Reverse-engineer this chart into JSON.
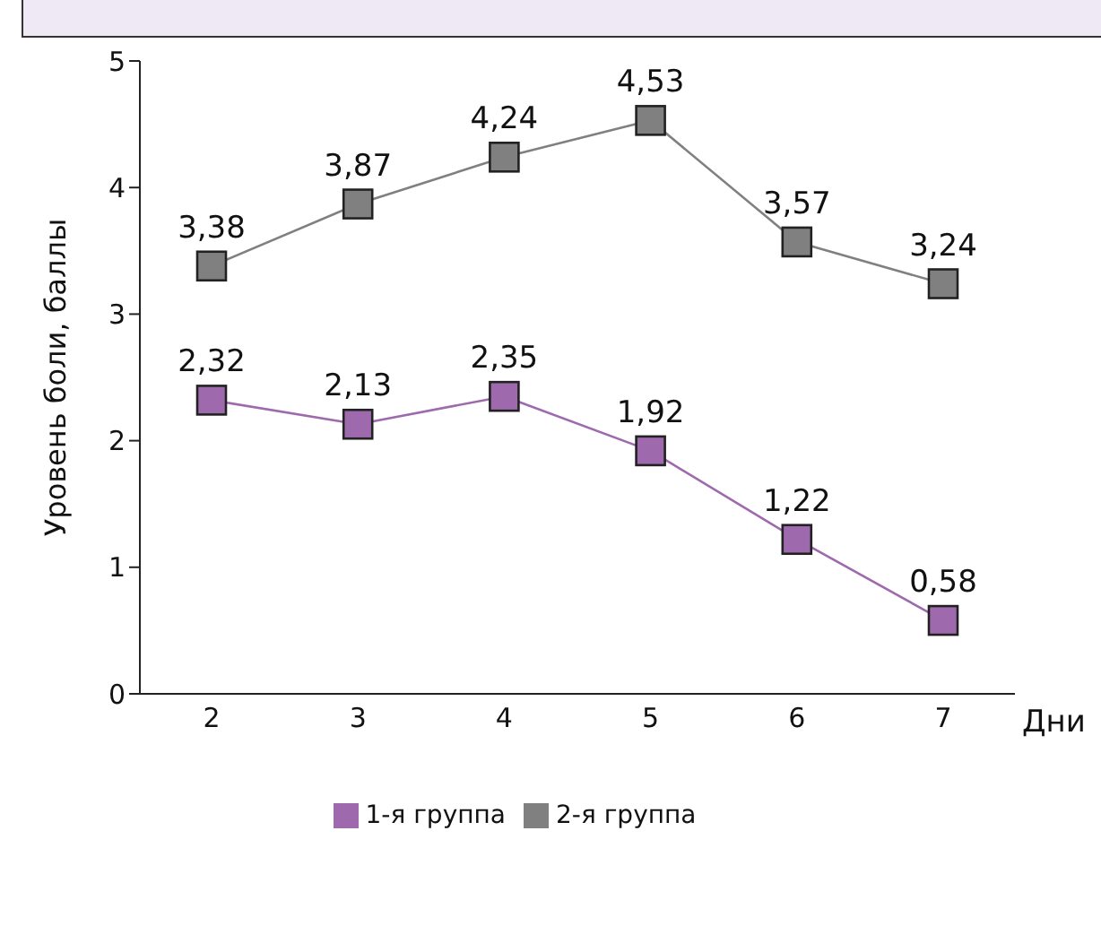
{
  "chart_data": {
    "type": "line",
    "xlabel": "Дни",
    "ylabel": "Уровень боли, баллы",
    "categories": [
      "2",
      "3",
      "4",
      "5",
      "6",
      "7"
    ],
    "series": [
      {
        "name": "1-я группа",
        "color": "#9e6aad",
        "values": [
          2.32,
          2.13,
          2.35,
          1.92,
          1.22,
          0.58
        ],
        "value_labels": [
          "2,32",
          "2,13",
          "2,35",
          "1,92",
          "1,22",
          "0,58"
        ]
      },
      {
        "name": "2-я группа",
        "color": "#808080",
        "values": [
          3.38,
          3.87,
          4.24,
          4.53,
          3.57,
          3.24
        ],
        "value_labels": [
          "3,38",
          "3,87",
          "4,24",
          "4,53",
          "3,57",
          "3,24"
        ]
      }
    ],
    "ylim": [
      0,
      5
    ],
    "yticks": [
      0,
      1,
      2,
      3,
      4,
      5
    ],
    "grid": false,
    "legend": "bottom",
    "marker": "square",
    "line_style": "solid"
  }
}
